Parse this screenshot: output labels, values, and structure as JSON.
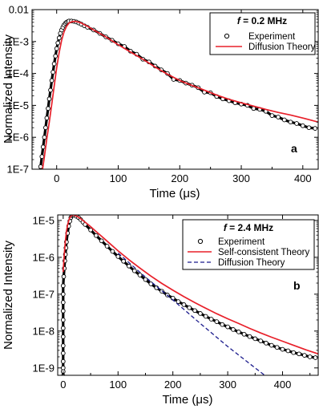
{
  "chart_data": [
    {
      "type": "scatter",
      "panel_label": "a",
      "legend_title": "f = 0.2 MHz",
      "legend_title_var": "f",
      "legend_title_rest": " = 0.2 MHz",
      "legend_placement": "top-right",
      "xlabel": "Time (μs)",
      "ylabel": "Normalized Intensity",
      "xlim": [
        -40,
        425
      ],
      "ylim_log10": [
        -7,
        -2
      ],
      "y_scale": "log",
      "x_ticks": [
        0,
        100,
        200,
        300,
        400
      ],
      "x_tick_labels": [
        "0",
        "100",
        "200",
        "300",
        "400"
      ],
      "y_ticks_log10": [
        -7,
        -6,
        -5,
        -4,
        -3,
        -2
      ],
      "y_tick_labels": [
        "1E-7",
        "1E-6",
        "1E-5",
        "1E-4",
        "1E-3",
        "0.01"
      ],
      "colors": {
        "experiment": "#000000",
        "theory": "#e8202a"
      },
      "series": [
        {
          "name": "Experiment",
          "style": "open-circles",
          "x": [
            -30,
            -28,
            -26,
            -24,
            -22,
            -20,
            -18,
            -16,
            -14,
            -12,
            -10,
            -8,
            -6,
            -4,
            -2,
            0,
            2,
            4,
            6,
            8,
            10,
            12,
            14,
            16,
            18,
            20,
            24,
            28,
            32,
            36,
            40,
            45,
            50,
            60,
            70,
            80,
            90,
            100,
            110,
            120,
            130,
            140,
            150,
            160,
            170,
            180,
            190,
            200,
            210,
            220,
            230,
            240,
            250,
            260,
            270,
            280,
            290,
            300,
            310,
            320,
            330,
            340,
            350,
            360,
            370,
            380,
            390,
            400,
            410,
            420
          ],
          "y": [
            3e-08,
            6e-08,
            1.2e-07,
            2.5e-07,
            5e-07,
            1e-06,
            2e-06,
            4e-06,
            8e-06,
            1.6e-05,
            3e-05,
            6e-05,
            0.00011,
            0.0002,
            0.00035,
            0.0006,
            0.0009,
            0.0013,
            0.0018,
            0.0023,
            0.0028,
            0.0033,
            0.0037,
            0.004,
            0.0042,
            0.0044,
            0.0044,
            0.0043,
            0.0041,
            0.0038,
            0.0035,
            0.0031,
            0.0028,
            0.0023,
            0.0018,
            0.0014,
            0.0011,
            0.00085,
            0.0007,
            0.0005,
            0.0004,
            0.00028,
            0.00023,
            0.00017,
            0.00013,
            0.0001,
            6.5e-05,
            6e-05,
            5e-05,
            4.3e-05,
            3.6e-05,
            2.6e-05,
            2.5e-05,
            1.9e-05,
            1.6e-05,
            1.4e-05,
            1.2e-05,
            1.1e-05,
            1e-05,
            8e-06,
            7.5e-06,
            6.5e-06,
            4.8e-06,
            4.3e-06,
            3.5e-06,
            3e-06,
            2.7e-06,
            2.3e-06,
            2e-06,
            1.9e-06
          ]
        },
        {
          "name": "Diffusion Theory",
          "style": "line",
          "x": [
            -23,
            -20,
            -16,
            -12,
            -8,
            -4,
            0,
            4,
            8,
            12,
            16,
            20,
            25,
            30,
            35,
            40,
            50,
            60,
            70,
            80,
            100,
            120,
            140,
            160,
            180,
            200,
            220,
            240,
            260,
            280,
            300,
            320,
            340,
            360,
            380,
            400,
            425
          ],
          "y": [
            1e-07,
            2.5e-07,
            9e-07,
            3e-06,
            1.1e-05,
            4e-05,
            0.00015,
            0.00045,
            0.0011,
            0.002,
            0.003,
            0.0038,
            0.0042,
            0.0043,
            0.0041,
            0.0038,
            0.003,
            0.0023,
            0.0018,
            0.0014,
            0.0008,
            0.00047,
            0.00028,
            0.00016,
            9.5e-05,
            6e-05,
            4.2e-05,
            3e-05,
            2.1e-05,
            1.55e-05,
            1.2e-05,
            9.5e-06,
            7.5e-06,
            6e-06,
            5e-06,
            4e-06,
            3e-06
          ]
        }
      ]
    },
    {
      "type": "scatter",
      "panel_label": "b",
      "legend_title": "f = 2.4 MHz",
      "legend_title_var": "f",
      "legend_title_rest": " = 2.4 MHz",
      "legend_placement": "top-right",
      "xlabel": "Time (μs)",
      "ylabel": "Normalized Intensity",
      "xlim": [
        -10,
        465
      ],
      "ylim_log10": [
        -9.2,
        -4.85
      ],
      "y_scale": "log",
      "x_ticks": [
        0,
        100,
        200,
        300,
        400
      ],
      "x_tick_labels": [
        "0",
        "100",
        "200",
        "300",
        "400"
      ],
      "y_ticks_log10": [
        -9,
        -8,
        -7,
        -6,
        -5
      ],
      "y_tick_labels": [
        "1E-9",
        "1E-8",
        "1E-7",
        "1E-6",
        "1E-5"
      ],
      "colors": {
        "experiment": "#000000",
        "theory": "#e8202a",
        "diffusion": "#1a1a8c"
      },
      "series": [
        {
          "name": "Experiment",
          "style": "open-circles",
          "x": [
            0,
            0,
            0,
            0,
            0,
            0,
            0,
            0,
            0,
            0,
            0,
            0,
            0,
            1,
            2,
            3,
            4,
            5,
            6,
            8,
            10,
            12,
            14,
            16,
            18,
            20,
            24,
            28,
            32,
            36,
            40,
            50,
            60,
            70,
            80,
            90,
            100,
            110,
            120,
            130,
            140,
            150,
            160,
            170,
            180,
            190,
            200,
            210,
            220,
            230,
            240,
            250,
            260,
            270,
            280,
            290,
            300,
            310,
            320,
            330,
            340,
            350,
            360,
            370,
            380,
            390,
            400,
            410,
            420,
            430,
            440,
            450,
            460
          ],
          "y": [
            6e-10,
            8e-10,
            1e-09,
            1.5e-09,
            2.5e-09,
            4e-09,
            7e-09,
            1.2e-08,
            2e-08,
            3.5e-08,
            6e-08,
            1e-07,
            1.7e-07,
            3e-07,
            5e-07,
            8e-07,
            1.2e-06,
            1.8e-06,
            2.6e-06,
            4.5e-06,
            7e-06,
            9.5e-06,
            1.2e-05,
            1.35e-05,
            1.4e-05,
            1.4e-05,
            1.3e-05,
            1.2e-05,
            1.05e-05,
            9e-06,
            7.8e-06,
            5.5e-06,
            3.9e-06,
            2.8e-06,
            2e-06,
            1.45e-06,
            1.05e-06,
            7.8e-07,
            5.8e-07,
            4.3e-07,
            3.3e-07,
            2.5e-07,
            1.9e-07,
            1.5e-07,
            1.2e-07,
            9.5e-08,
            7.8e-08,
            6.3e-08,
            5.2e-08,
            4.3e-08,
            3.6e-08,
            3e-08,
            2.5e-08,
            2.1e-08,
            1.8e-08,
            1.5e-08,
            1.3e-08,
            1.1e-08,
            9.5e-09,
            8.2e-09,
            7.1e-09,
            6.2e-09,
            5.4e-09,
            4.7e-09,
            4.1e-09,
            3.6e-09,
            3.2e-09,
            2.9e-09,
            2.6e-09,
            2.4e-09,
            2.2e-09,
            2e-09,
            1.9e-09
          ]
        },
        {
          "name": "Self-consistent Theory",
          "style": "line",
          "x": [
            0,
            2,
            4,
            6,
            8,
            10,
            12,
            14,
            16,
            18,
            20,
            25,
            30,
            40,
            50,
            60,
            80,
            100,
            120,
            140,
            160,
            180,
            200,
            220,
            240,
            260,
            280,
            300,
            320,
            340,
            360,
            380,
            400,
            420,
            440,
            465
          ],
          "y": [
            4e-07,
            1.2e-06,
            2.8e-06,
            5e-06,
            7.5e-06,
            9.8e-06,
            1.18e-05,
            1.3e-05,
            1.37e-05,
            1.4e-05,
            1.39e-05,
            1.3e-05,
            1.17e-05,
            9e-06,
            6.8e-06,
            5e-06,
            2.75e-06,
            1.5e-06,
            8.6e-07,
            5.1e-07,
            3.1e-07,
            1.95e-07,
            1.28e-07,
            8.6e-08,
            5.9e-08,
            4.15e-08,
            2.95e-08,
            2.15e-08,
            1.6e-08,
            1.18e-08,
            8.9e-09,
            6.8e-09,
            5.3e-09,
            4.1e-09,
            3.2e-09,
            2.4e-09
          ]
        },
        {
          "name": "Diffusion Theory",
          "style": "dashed-line",
          "x": [
            100,
            150,
            200,
            250,
            300,
            350,
            400,
            420
          ],
          "y": [
            1.3e-06,
            2.9e-07,
            7e-08,
            1.6e-08,
            3.8e-09,
            1e-09,
            2.7e-10,
            1.6e-10
          ]
        }
      ]
    }
  ]
}
